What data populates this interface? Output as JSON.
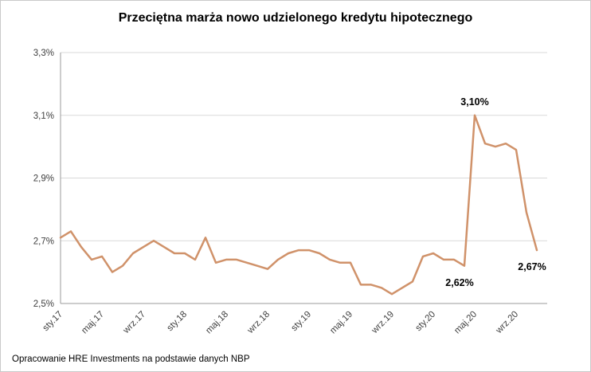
{
  "title": "Przeciętna marża nowo udzielonego kredytu hipotecznego",
  "source": "Opracowanie HRE Investments na podstawie danych NBP",
  "chart_data": {
    "type": "line",
    "title": "Przeciętna marża nowo udzielonego kredytu hipotecznego",
    "line_color": "#d0926a",
    "grid": true,
    "legend": "none",
    "x_tick_labels": [
      "sty.17",
      "maj.17",
      "wrz.17",
      "sty.18",
      "maj.18",
      "wrz.18",
      "sty.19",
      "maj.19",
      "wrz.19",
      "sty.20",
      "maj.20",
      "wrz.20"
    ],
    "x_tick_step": 4,
    "values": [
      2.71,
      2.73,
      2.68,
      2.64,
      2.65,
      2.6,
      2.62,
      2.66,
      2.68,
      2.7,
      2.68,
      2.66,
      2.66,
      2.64,
      2.71,
      2.63,
      2.64,
      2.64,
      2.63,
      2.62,
      2.61,
      2.64,
      2.66,
      2.67,
      2.67,
      2.66,
      2.64,
      2.63,
      2.63,
      2.56,
      2.56,
      2.55,
      2.53,
      2.55,
      2.57,
      2.65,
      2.66,
      2.64,
      2.64,
      2.62,
      3.1,
      3.01,
      3.0,
      3.01,
      2.99,
      2.79,
      2.67
    ],
    "ylim": [
      2.5,
      3.3
    ],
    "y_ticks": [
      {
        "value": 2.5,
        "label": "2,5%"
      },
      {
        "value": 2.7,
        "label": "2,7%"
      },
      {
        "value": 2.9,
        "label": "2,9%"
      },
      {
        "value": 3.1,
        "label": "3,1%"
      },
      {
        "value": 3.3,
        "label": "3,3%"
      }
    ],
    "annotations": [
      {
        "index": 39,
        "label": "2,62%",
        "position": "below"
      },
      {
        "index": 40,
        "label": "3,10%",
        "position": "above"
      },
      {
        "index": 46,
        "label": "2,67%",
        "position": "below"
      }
    ]
  }
}
